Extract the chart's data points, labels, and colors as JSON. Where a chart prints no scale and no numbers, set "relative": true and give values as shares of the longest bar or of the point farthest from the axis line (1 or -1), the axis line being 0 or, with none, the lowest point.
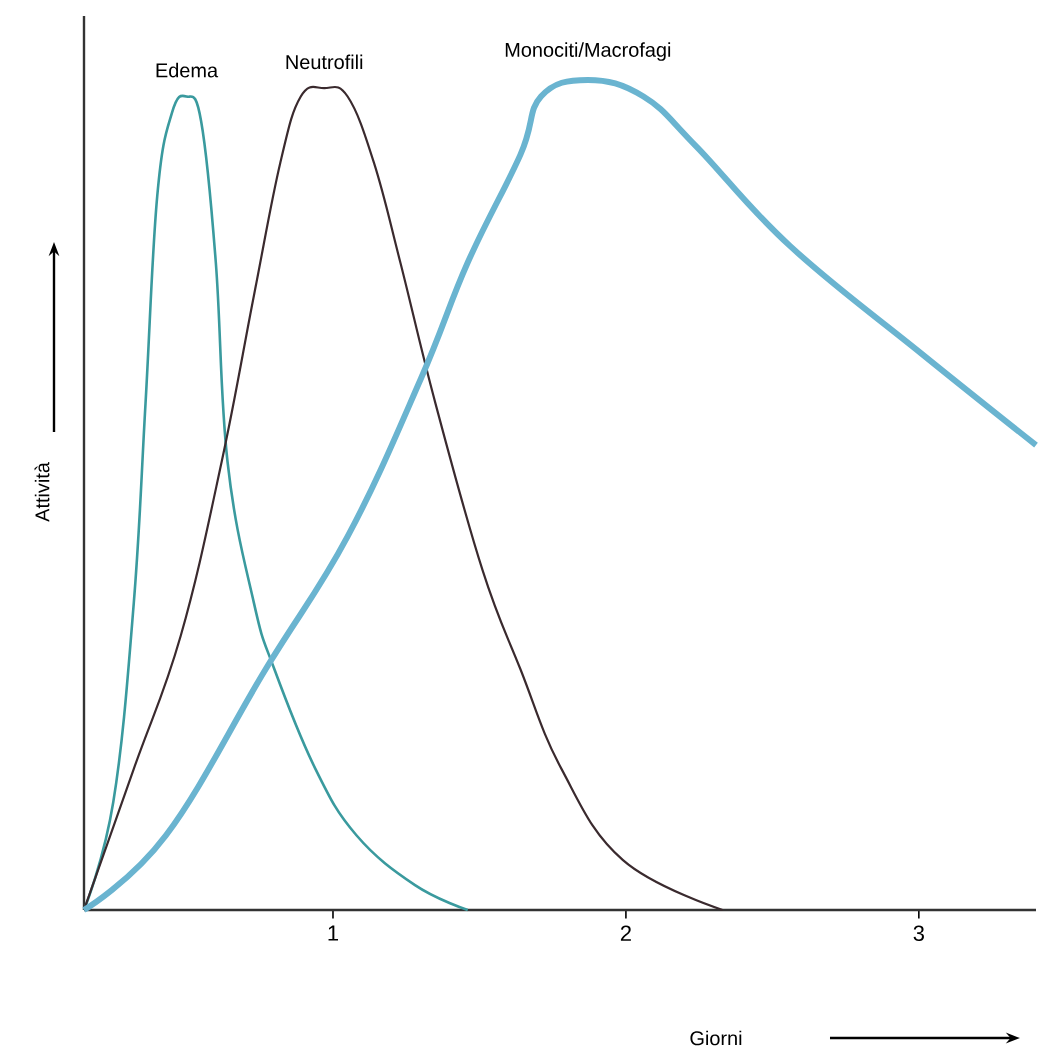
{
  "chart_data": {
    "type": "line",
    "relative": true,
    "xlabel": "Giorni",
    "ylabel": "Attività",
    "xlim": [
      0.15,
      3.4
    ],
    "xticks": [
      1,
      2,
      3
    ],
    "grid": false,
    "line_style": "solid",
    "series": [
      {
        "name": "Edema",
        "color": "#3a9a9e",
        "x": [
          0.15,
          0.25,
          0.32,
          0.36,
          0.4,
          0.45,
          0.5,
          0.55,
          0.6,
          0.64,
          0.73,
          0.8,
          0.94,
          1.08,
          1.28,
          1.46
        ],
        "values": [
          0,
          0.13,
          0.37,
          0.61,
          0.86,
          0.96,
          0.98,
          0.95,
          0.78,
          0.54,
          0.37,
          0.29,
          0.17,
          0.09,
          0.03,
          0
        ]
      },
      {
        "name": "Neutrofili",
        "color": "#3a2a2e",
        "x": [
          0.15,
          0.32,
          0.48,
          0.62,
          0.73,
          0.82,
          0.89,
          0.97,
          1.05,
          1.14,
          1.23,
          1.35,
          1.51,
          1.64,
          1.78,
          1.99,
          2.33
        ],
        "values": [
          0,
          0.17,
          0.33,
          0.54,
          0.74,
          0.9,
          0.98,
          0.99,
          0.98,
          0.9,
          0.78,
          0.61,
          0.41,
          0.29,
          0.17,
          0.06,
          0
        ]
      },
      {
        "name": "Monociti/Macrofagi",
        "color": "#6ab4d0",
        "x": [
          0.15,
          0.43,
          0.77,
          1.05,
          1.3,
          1.46,
          1.64,
          1.71,
          1.87,
          2.06,
          2.24,
          2.56,
          3.01,
          3.4
        ],
        "values": [
          0,
          0.09,
          0.29,
          0.45,
          0.64,
          0.78,
          0.91,
          0.98,
          1.0,
          0.98,
          0.92,
          0.8,
          0.67,
          0.56
        ]
      }
    ]
  }
}
